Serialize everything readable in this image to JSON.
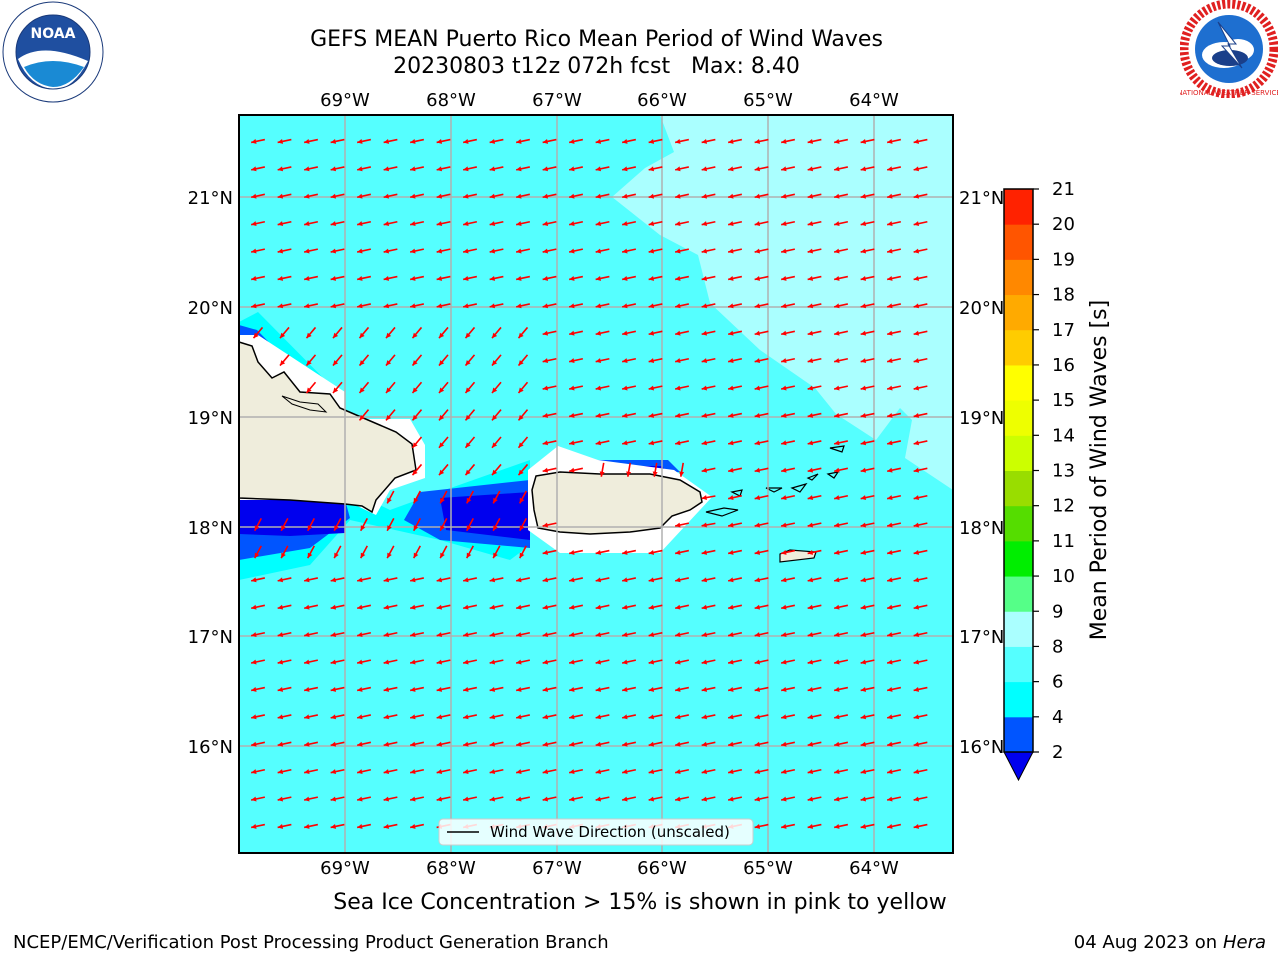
{
  "title": {
    "line1": "GEFS MEAN Puerto Rico Mean Period of Wind Waves",
    "line2": "20230803 t12z 072h fcst   Max: 8.40"
  },
  "logos": {
    "left": "NOAA",
    "right": "NATIONAL WEATHER SERVICE"
  },
  "map": {
    "lon_labels": [
      "69°W",
      "68°W",
      "67°W",
      "66°W",
      "65°W",
      "64°W"
    ],
    "lat_labels": [
      "21°N",
      "20°N",
      "19°N",
      "18°N",
      "17°N",
      "16°N"
    ],
    "legend": "Wind Wave Direction (unscaled)",
    "colors": {
      "ocean": "#55ffff",
      "light": "#aaffff",
      "blue": "#0055ff",
      "dark_blue": "#0000ee",
      "land": "#efeddc",
      "arrow": "#ff0000",
      "grid": "#b0b0b0"
    }
  },
  "colorbar": {
    "label": "Mean Period of Wind Waves [s]",
    "ticks": [
      "2",
      "4",
      "6",
      "8",
      "9",
      "10",
      "11",
      "12",
      "13",
      "14",
      "15",
      "16",
      "17",
      "18",
      "19",
      "20",
      "21"
    ],
    "colors": [
      "#0055ff",
      "#00ffff",
      "#55ffff",
      "#aaffff",
      "#55ff88",
      "#00ee00",
      "#55dd00",
      "#99dd00",
      "#ccff00",
      "#eeff00",
      "#ffff00",
      "#ffcc00",
      "#ffaa00",
      "#ff8800",
      "#ff5500",
      "#ff2200"
    ],
    "under_color": "#0000ee",
    "over_color": "#ff0000"
  },
  "subtitle": "Sea Ice Concentration > 15% is shown in pink to yellow",
  "footer": {
    "credit": "NCEP/EMC/Verification Post Processing Product Generation Branch",
    "date": "04 Aug 2023 on",
    "system": "Hera"
  }
}
